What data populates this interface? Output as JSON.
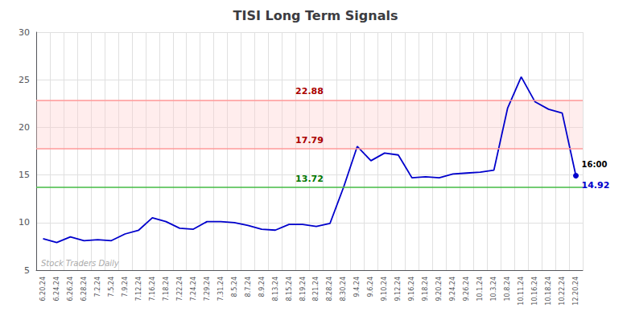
{
  "chart_data": {
    "type": "line",
    "title": "TISI Long Term Signals",
    "categories": [
      "6.20.24",
      "6.24.24",
      "6.26.24",
      "6.28.24",
      "7.2.24",
      "7.5.24",
      "7.9.24",
      "7.12.24",
      "7.16.24",
      "7.18.24",
      "7.22.24",
      "7.24.24",
      "7.29.24",
      "7.31.24",
      "8.5.24",
      "8.7.24",
      "8.9.24",
      "8.13.24",
      "8.15.24",
      "8.19.24",
      "8.21.24",
      "8.28.24",
      "8.30.24",
      "9.4.24",
      "9.6.24",
      "9.10.24",
      "9.12.24",
      "9.16.24",
      "9.18.24",
      "9.20.24",
      "9.24.24",
      "9.26.24",
      "10.1.24",
      "10.3.24",
      "10.8.24",
      "10.11.24",
      "10.16.24",
      "10.18.24",
      "10.22.24",
      "12.20.24"
    ],
    "values": [
      8.3,
      7.9,
      8.5,
      8.1,
      8.2,
      8.1,
      8.8,
      9.2,
      10.5,
      10.1,
      9.4,
      9.3,
      10.1,
      10.1,
      10.0,
      9.7,
      9.3,
      9.2,
      9.8,
      9.8,
      9.6,
      9.9,
      13.72,
      18.0,
      16.5,
      17.3,
      17.1,
      14.7,
      14.8,
      14.7,
      15.1,
      15.2,
      15.3,
      15.5,
      22.0,
      25.3,
      22.7,
      21.9,
      21.5,
      14.92
    ],
    "color": "#0000CC",
    "ylim": [
      5,
      30
    ],
    "yticks": [
      5,
      10,
      15,
      20,
      25,
      30
    ],
    "grid": true,
    "hlines": [
      {
        "value": 13.72,
        "label": "13.72",
        "color": "#44BB44",
        "label_color": "#007700"
      },
      {
        "value": 17.79,
        "label": "17.79",
        "color": "#FF9999",
        "label_color": "#AA0000"
      },
      {
        "value": 22.88,
        "label": "22.88",
        "color": "#FF9999",
        "label_color": "#AA0000"
      }
    ],
    "band": {
      "from": 17.79,
      "to": 22.88,
      "color": "#ffcccc"
    },
    "annotations": [
      {
        "text": "16:00",
        "category": "12.20.24",
        "value": 14.92,
        "color": "#000000"
      },
      {
        "text": "14.92",
        "category": "12.20.24",
        "value": 14.92,
        "color": "#0000CC"
      }
    ],
    "watermark": "Stock Traders Daily"
  }
}
